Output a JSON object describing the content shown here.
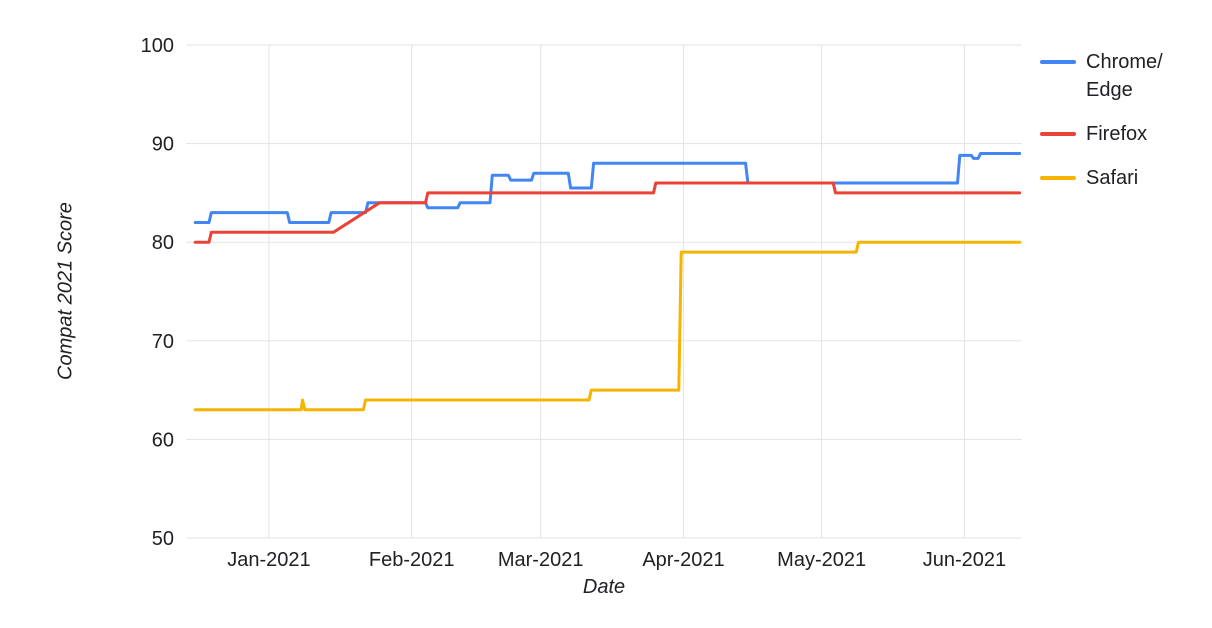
{
  "chart_data": {
    "type": "line",
    "title": "",
    "xlabel": "Date",
    "ylabel": "Compat 2021 Score",
    "x_encoding": "days since 2020-12-16",
    "xlim": [
      -2,
      179.5
    ],
    "ylim": [
      50,
      100
    ],
    "grid": true,
    "legend_position": "right",
    "x_ticks": [
      {
        "x": 16,
        "label": "Jan-2021"
      },
      {
        "x": 47,
        "label": "Feb-2021"
      },
      {
        "x": 75,
        "label": "Mar-2021"
      },
      {
        "x": 106,
        "label": "Apr-2021"
      },
      {
        "x": 136,
        "label": "May-2021"
      },
      {
        "x": 167,
        "label": "Jun-2021"
      }
    ],
    "y_ticks": [
      50,
      60,
      70,
      80,
      90,
      100
    ],
    "series": [
      {
        "name": "Chrome/Edge",
        "color": "#4285f4",
        "points": [
          [
            0,
            82
          ],
          [
            3,
            82
          ],
          [
            3.5,
            83
          ],
          [
            20,
            83
          ],
          [
            20.5,
            82
          ],
          [
            29,
            82
          ],
          [
            29.5,
            83
          ],
          [
            37,
            83
          ],
          [
            37.5,
            84
          ],
          [
            50,
            84
          ],
          [
            50.5,
            83.5
          ],
          [
            57,
            83.5
          ],
          [
            57.5,
            84
          ],
          [
            64,
            84
          ],
          [
            64.5,
            86.8
          ],
          [
            68,
            86.8
          ],
          [
            68.5,
            86.3
          ],
          [
            73,
            86.3
          ],
          [
            73.5,
            87
          ],
          [
            81,
            87
          ],
          [
            81.5,
            85.5
          ],
          [
            86,
            85.5
          ],
          [
            86.5,
            88
          ],
          [
            119.5,
            88
          ],
          [
            120,
            86
          ],
          [
            165.5,
            86
          ],
          [
            166,
            88.8
          ],
          [
            168.5,
            88.8
          ],
          [
            169,
            88.5
          ],
          [
            170,
            88.5
          ],
          [
            170.5,
            89
          ],
          [
            179,
            89
          ]
        ]
      },
      {
        "name": "Firefox",
        "color": "#ea4335",
        "points": [
          [
            0,
            80
          ],
          [
            3,
            80
          ],
          [
            3.5,
            81
          ],
          [
            30,
            81
          ],
          [
            40,
            84
          ],
          [
            50,
            84
          ],
          [
            50.5,
            85
          ],
          [
            99.5,
            85
          ],
          [
            100,
            86
          ],
          [
            138.5,
            86
          ],
          [
            139,
            85
          ],
          [
            179,
            85
          ]
        ]
      },
      {
        "name": "Safari",
        "color": "#f4b400",
        "points": [
          [
            0,
            63
          ],
          [
            23,
            63
          ],
          [
            23.3,
            64
          ],
          [
            23.8,
            63
          ],
          [
            36.5,
            63
          ],
          [
            37,
            64
          ],
          [
            85.5,
            64
          ],
          [
            86,
            65
          ],
          [
            105,
            65
          ],
          [
            105.5,
            79
          ],
          [
            143.5,
            79
          ],
          [
            144,
            80
          ],
          [
            179,
            80
          ]
        ]
      }
    ]
  },
  "legend": {
    "items": [
      {
        "label": "Chrome/\nEdge",
        "color": "#4285f4"
      },
      {
        "label": "Firefox",
        "color": "#ea4335"
      },
      {
        "label": "Safari",
        "color": "#f4b400"
      }
    ]
  },
  "style": {
    "gridline_color": "#e3e3e3",
    "text_color": "#202124"
  }
}
